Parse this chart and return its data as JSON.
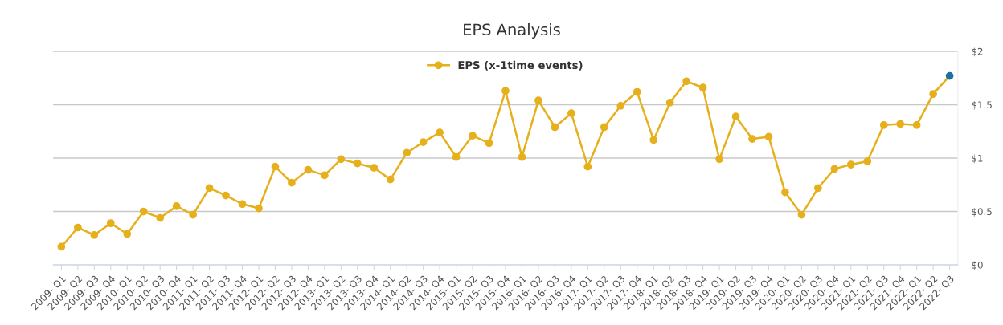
{
  "chart_data": {
    "type": "line",
    "title": "EPS Analysis",
    "categories": [
      "2009- Q1",
      "2009- Q2",
      "2009- Q3",
      "2009- Q4",
      "2010- Q1",
      "2010- Q2",
      "2010- Q3",
      "2010- Q4",
      "2011- Q1",
      "2011- Q2",
      "2011- Q3",
      "2011- Q4",
      "2012- Q1",
      "2012- Q2",
      "2012- Q3",
      "2012- Q4",
      "2013- Q1",
      "2013- Q2",
      "2013- Q3",
      "2013- Q4",
      "2014- Q1",
      "2014- Q2",
      "2014- Q3",
      "2014- Q4",
      "2015- Q1",
      "2015- Q2",
      "2015- Q3",
      "2015- Q4",
      "2016- Q1",
      "2016- Q2",
      "2016- Q3",
      "2016- Q4",
      "2017- Q1",
      "2017- Q2",
      "2017- Q3",
      "2017- Q4",
      "2018- Q1",
      "2018- Q2",
      "2018- Q3",
      "2018- Q4",
      "2019- Q1",
      "2019- Q2",
      "2019- Q3",
      "2019- Q4",
      "2020- Q1",
      "2020- Q2",
      "2020- Q3",
      "2020- Q4",
      "2021- Q1",
      "2021- Q2",
      "2021- Q3",
      "2021- Q4",
      "2022- Q1",
      "2022- Q2",
      "2022- Q3"
    ],
    "series": [
      {
        "name": "EPS (x-1time events)",
        "color": "#e6b01c",
        "colors": [
          "#e6b01c",
          "#e6b01c",
          "#e6b01c",
          "#e6b01c",
          "#e6b01c",
          "#e6b01c",
          "#e6b01c",
          "#e6b01c",
          "#e6b01c",
          "#e6b01c",
          "#e6b01c",
          "#e6b01c",
          "#e6b01c",
          "#e6b01c",
          "#e6b01c",
          "#e6b01c",
          "#e6b01c",
          "#e6b01c",
          "#e6b01c",
          "#e6b01c",
          "#e6b01c",
          "#e6b01c",
          "#e6b01c",
          "#e6b01c",
          "#e6b01c",
          "#e6b01c",
          "#e6b01c",
          "#e6b01c",
          "#e6b01c",
          "#e6b01c",
          "#e6b01c",
          "#e6b01c",
          "#e6b01c",
          "#e6b01c",
          "#e6b01c",
          "#e6b01c",
          "#e6b01c",
          "#e6b01c",
          "#e6b01c",
          "#e6b01c",
          "#e6b01c",
          "#e6b01c",
          "#e6b01c",
          "#e6b01c",
          "#e6b01c",
          "#e6b01c",
          "#e6b01c",
          "#e6b01c",
          "#e6b01c",
          "#e6b01c",
          "#e6b01c",
          "#e6b01c",
          "#e6b01c",
          "#e6b01c",
          "#1f6fa0"
        ],
        "values": [
          0.17,
          0.35,
          0.28,
          0.39,
          0.29,
          0.5,
          0.44,
          0.55,
          0.47,
          0.72,
          0.65,
          0.57,
          0.53,
          0.92,
          0.77,
          0.89,
          0.84,
          0.99,
          0.95,
          0.91,
          0.8,
          1.05,
          1.15,
          1.24,
          1.01,
          1.21,
          1.14,
          1.63,
          1.01,
          1.54,
          1.29,
          1.42,
          0.92,
          1.29,
          1.49,
          1.62,
          1.17,
          1.52,
          1.72,
          1.66,
          0.99,
          1.39,
          1.18,
          1.2,
          0.68,
          0.47,
          0.72,
          0.9,
          0.94,
          0.97,
          1.31,
          1.32,
          1.31,
          1.6,
          1.77
        ]
      }
    ],
    "ylim": [
      0,
      2
    ],
    "yticks": [
      {
        "value": 0,
        "label": "$0"
      },
      {
        "value": 0.5,
        "label": "$0.5"
      },
      {
        "value": 1,
        "label": "$1"
      },
      {
        "value": 1.5,
        "label": "$1.5"
      },
      {
        "value": 2,
        "label": "$2"
      }
    ],
    "grid": "y",
    "legend": "top",
    "marker": "circle",
    "line_style": "solid"
  }
}
